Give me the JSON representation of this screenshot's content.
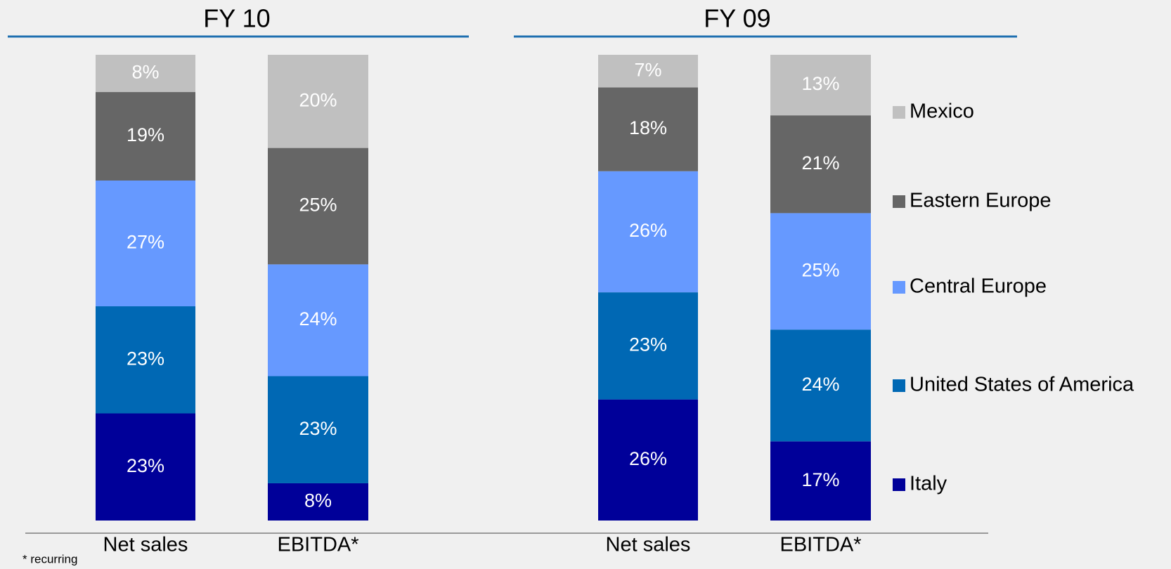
{
  "chart_data": [
    {
      "type": "stacked_bar",
      "title": "FY 10",
      "categories": [
        "Net sales",
        "EBITDA*"
      ],
      "ylim": [
        0,
        100
      ],
      "series": [
        {
          "name": "Italy",
          "color": "#000099",
          "values": [
            23,
            8
          ],
          "value_labels": [
            "23%",
            "8%"
          ]
        },
        {
          "name": "United States of America",
          "color": "#0068b4",
          "values": [
            23,
            23
          ],
          "value_labels": [
            "23%",
            "23%"
          ]
        },
        {
          "name": "Central Europe",
          "color": "#6699ff",
          "values": [
            27,
            24
          ],
          "value_labels": [
            "27%",
            "24%"
          ]
        },
        {
          "name": "Eastern Europe",
          "color": "#666666",
          "values": [
            19,
            25
          ],
          "value_labels": [
            "19%",
            "25%"
          ]
        },
        {
          "name": "Mexico",
          "color": "#c0c0c0",
          "values": [
            8,
            20
          ],
          "value_labels": [
            "8%",
            "20%"
          ]
        }
      ]
    },
    {
      "type": "stacked_bar",
      "title": "FY 09",
      "categories": [
        "Net sales",
        "EBITDA*"
      ],
      "ylim": [
        0,
        100
      ],
      "legend": "right",
      "series": [
        {
          "name": "Italy",
          "color": "#000099",
          "values": [
            26,
            17
          ],
          "value_labels": [
            "26%",
            "17%"
          ]
        },
        {
          "name": "United States of America",
          "color": "#0068b4",
          "values": [
            23,
            24
          ],
          "value_labels": [
            "23%",
            "24%"
          ]
        },
        {
          "name": "Central Europe",
          "color": "#6699ff",
          "values": [
            26,
            25
          ],
          "value_labels": [
            "26%",
            "25%"
          ]
        },
        {
          "name": "Eastern Europe",
          "color": "#666666",
          "values": [
            18,
            21
          ],
          "value_labels": [
            "18%",
            "21%"
          ]
        },
        {
          "name": "Mexico",
          "color": "#c0c0c0",
          "values": [
            7,
            13
          ],
          "value_labels": [
            "7%",
            "13%"
          ]
        }
      ]
    }
  ],
  "footnote": "* recurring"
}
